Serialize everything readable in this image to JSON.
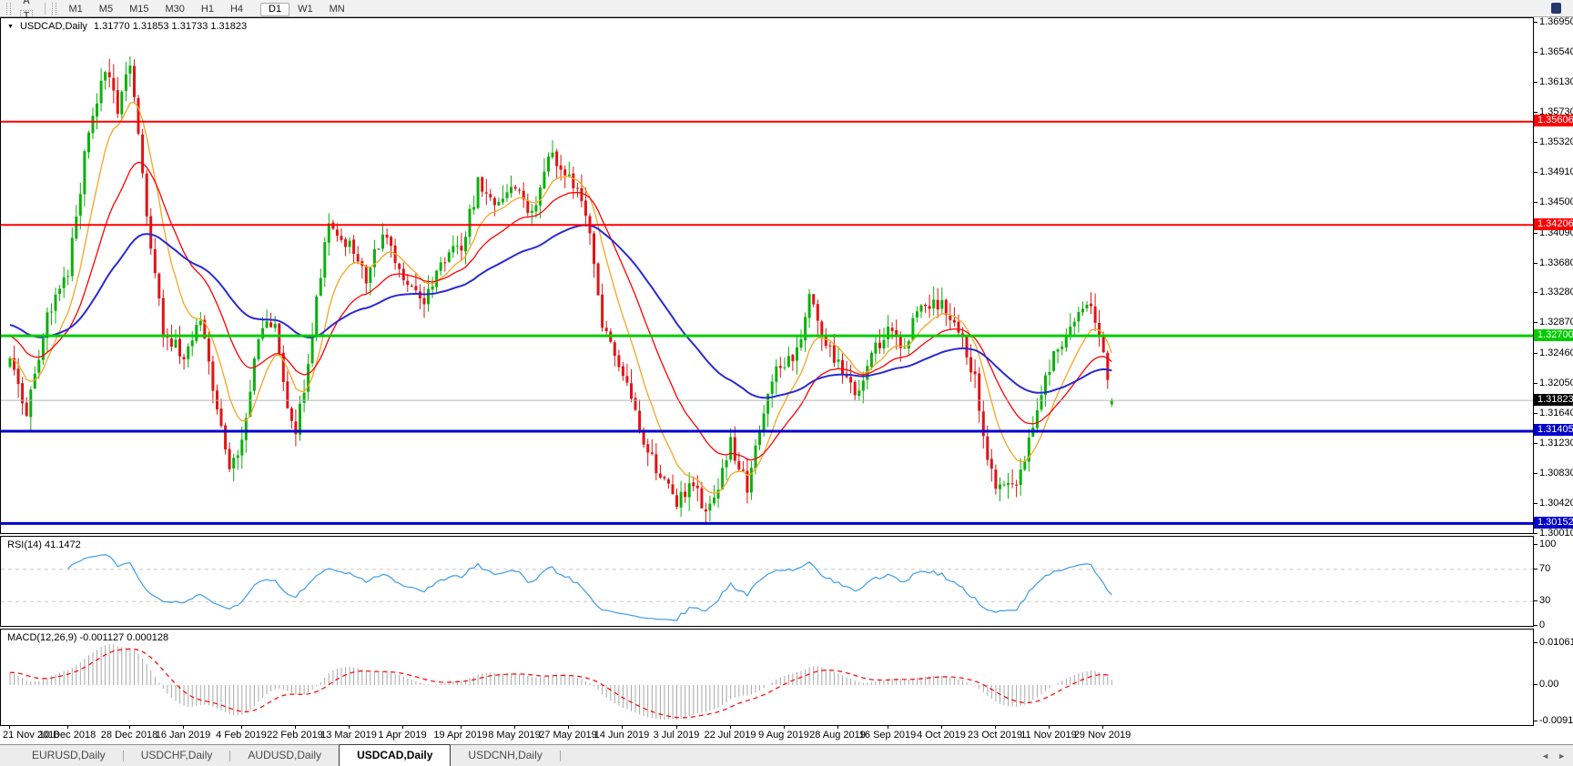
{
  "toolbar": {
    "tools": [
      {
        "name": "grid-tool",
        "glyph": "F",
        "type": "dotgrid"
      },
      {
        "name": "label-tool",
        "glyph": "A",
        "type": "text"
      },
      {
        "name": "text-tool",
        "glyph": "T",
        "type": "boxed-text"
      },
      {
        "name": "shapes-tool",
        "glyph": "▾",
        "type": "shapes"
      }
    ],
    "timeframes": [
      "M1",
      "M5",
      "M15",
      "M30",
      "H1",
      "H4",
      "D1",
      "W1",
      "MN"
    ],
    "active_timeframe": "D1"
  },
  "chart": {
    "dropdown_glyph": "▼",
    "title": "USDCAD,Daily",
    "ohlc_text": "1.31770 1.31853 1.31733 1.31823"
  },
  "indicators": {
    "rsi_label": "RSI(14) 41.1472",
    "macd_label": "MACD(12,26,9) -0.001127 0.000128"
  },
  "tabs": {
    "items": [
      "EURUSD,Daily",
      "USDCHF,Daily",
      "AUDUSD,Daily",
      "USDCAD,Daily",
      "USDCNH,Daily"
    ],
    "active": "USDCAD,Daily",
    "scroll_left": "◄",
    "scroll_right": "►"
  },
  "chart_data": {
    "type": "candlestick",
    "symbol": "USDCAD",
    "timeframe": "Daily",
    "current": {
      "open": 1.3177,
      "high": 1.31853,
      "low": 1.31733,
      "close": 1.31823
    },
    "candle_count": 267,
    "price_axis_ticks": [
      "1.36950",
      "1.36540",
      "1.36130",
      "1.35730",
      "1.35320",
      "1.34910",
      "1.34500",
      "1.34090",
      "1.33680",
      "1.33280",
      "1.32870",
      "1.32460",
      "1.32050",
      "1.31640",
      "1.31230",
      "1.30830",
      "1.30420",
      "1.30010"
    ],
    "horizontal_lines": [
      {
        "price": 1.35606,
        "label": "1.35606",
        "color": "#FF0000",
        "width": 2
      },
      {
        "price": 1.34206,
        "label": "1.34206",
        "color": "#FF0000",
        "width": 2
      },
      {
        "price": 1.327,
        "label": "1.32700",
        "color": "#00CC00",
        "width": 3
      },
      {
        "price": 1.31405,
        "label": "1.31405",
        "color": "#0000CD",
        "width": 3
      },
      {
        "price": 1.30152,
        "label": "1.30152",
        "color": "#0000CD",
        "width": 3
      }
    ],
    "current_price": {
      "value": 1.31823,
      "label": "1.31823",
      "line_color": "#b4b4b4",
      "tag_color": "#000000"
    },
    "date_labels": [
      {
        "label": "21 Nov 2018",
        "index": 0
      },
      {
        "label": "10 Dec 2018",
        "index": 14
      },
      {
        "label": "28 Dec 2018",
        "index": 29
      },
      {
        "label": "16 Jan 2019",
        "index": 42
      },
      {
        "label": "4 Feb 2019",
        "index": 56
      },
      {
        "label": "22 Feb 2019",
        "index": 69
      },
      {
        "label": "13 Mar 2019",
        "index": 82
      },
      {
        "label": "1 Apr 2019",
        "index": 95
      },
      {
        "label": "19 Apr 2019",
        "index": 109
      },
      {
        "label": "8 May 2019",
        "index": 122
      },
      {
        "label": "27 May 2019",
        "index": 135
      },
      {
        "label": "14 Jun 2019",
        "index": 148
      },
      {
        "label": "3 Jul 2019",
        "index": 161
      },
      {
        "label": "22 Jul 2019",
        "index": 174
      },
      {
        "label": "9 Aug 2019",
        "index": 187
      },
      {
        "label": "28 Aug 2019",
        "index": 200
      },
      {
        "label": "16 Sep 2019",
        "index": 212
      },
      {
        "label": "4 Oct 2019",
        "index": 225
      },
      {
        "label": "23 Oct 2019",
        "index": 238
      },
      {
        "label": "11 Nov 2019",
        "index": 251
      },
      {
        "label": "29 Nov 2019",
        "index": 264
      }
    ],
    "price_path": [
      [
        0,
        1.3235
      ],
      [
        4,
        1.3165
      ],
      [
        9,
        1.33
      ],
      [
        14,
        1.3355
      ],
      [
        19,
        1.355
      ],
      [
        23,
        1.3635
      ],
      [
        26,
        1.358
      ],
      [
        29,
        1.3645
      ],
      [
        33,
        1.344
      ],
      [
        37,
        1.327
      ],
      [
        42,
        1.3245
      ],
      [
        46,
        1.329
      ],
      [
        50,
        1.317
      ],
      [
        53,
        1.3085
      ],
      [
        56,
        1.313
      ],
      [
        60,
        1.327
      ],
      [
        64,
        1.329
      ],
      [
        67,
        1.3175
      ],
      [
        69,
        1.314
      ],
      [
        71,
        1.32
      ],
      [
        74,
        1.332
      ],
      [
        77,
        1.343
      ],
      [
        82,
        1.339
      ],
      [
        86,
        1.3345
      ],
      [
        90,
        1.3415
      ],
      [
        95,
        1.335
      ],
      [
        100,
        1.3315
      ],
      [
        104,
        1.3375
      ],
      [
        109,
        1.339
      ],
      [
        113,
        1.3475
      ],
      [
        117,
        1.345
      ],
      [
        122,
        1.347
      ],
      [
        126,
        1.343
      ],
      [
        130,
        1.3515
      ],
      [
        135,
        1.349
      ],
      [
        139,
        1.344
      ],
      [
        143,
        1.329
      ],
      [
        148,
        1.322
      ],
      [
        153,
        1.313
      ],
      [
        157,
        1.3075
      ],
      [
        161,
        1.3045
      ],
      [
        165,
        1.307
      ],
      [
        168,
        1.3025
      ],
      [
        172,
        1.3085
      ],
      [
        174,
        1.3125
      ],
      [
        178,
        1.3065
      ],
      [
        181,
        1.314
      ],
      [
        184,
        1.3215
      ],
      [
        187,
        1.323
      ],
      [
        190,
        1.3245
      ],
      [
        193,
        1.333
      ],
      [
        197,
        1.326
      ],
      [
        200,
        1.3235
      ],
      [
        204,
        1.3185
      ],
      [
        208,
        1.3245
      ],
      [
        212,
        1.328
      ],
      [
        216,
        1.3255
      ],
      [
        220,
        1.3315
      ],
      [
        225,
        1.331
      ],
      [
        229,
        1.328
      ],
      [
        233,
        1.321
      ],
      [
        236,
        1.3105
      ],
      [
        238,
        1.307
      ],
      [
        242,
        1.306
      ],
      [
        246,
        1.3125
      ],
      [
        251,
        1.323
      ],
      [
        255,
        1.327
      ],
      [
        258,
        1.33
      ],
      [
        261,
        1.3315
      ],
      [
        263,
        1.327
      ],
      [
        264,
        1.324
      ],
      [
        265,
        1.321
      ],
      [
        266,
        1.3182
      ]
    ],
    "colors": {
      "up": "#0CB00C",
      "down": "#E01414",
      "ma_fast": "#F5A623",
      "ma_mid": "#FF0000",
      "ma_slow": "#2A2AD4",
      "rsi": "#3E9CE8",
      "rsi_levels": "#C8C8C8",
      "macd_hist": "#A8A8A8",
      "macd_signal": "#FF0000"
    },
    "moving_average_periods": {
      "fast": 10,
      "mid": 24,
      "slow": 60
    },
    "rsi": {
      "period": 14,
      "value": 41.1472,
      "levels": [
        70,
        30
      ],
      "axis_ticks": [
        "100",
        "70",
        "30",
        "0"
      ]
    },
    "macd": {
      "params": "12,26,9",
      "macd_value": -0.001127,
      "signal_value": 0.000128,
      "axis_ticks": [
        "0.010615",
        "0.00",
        "-0.009181"
      ]
    }
  }
}
